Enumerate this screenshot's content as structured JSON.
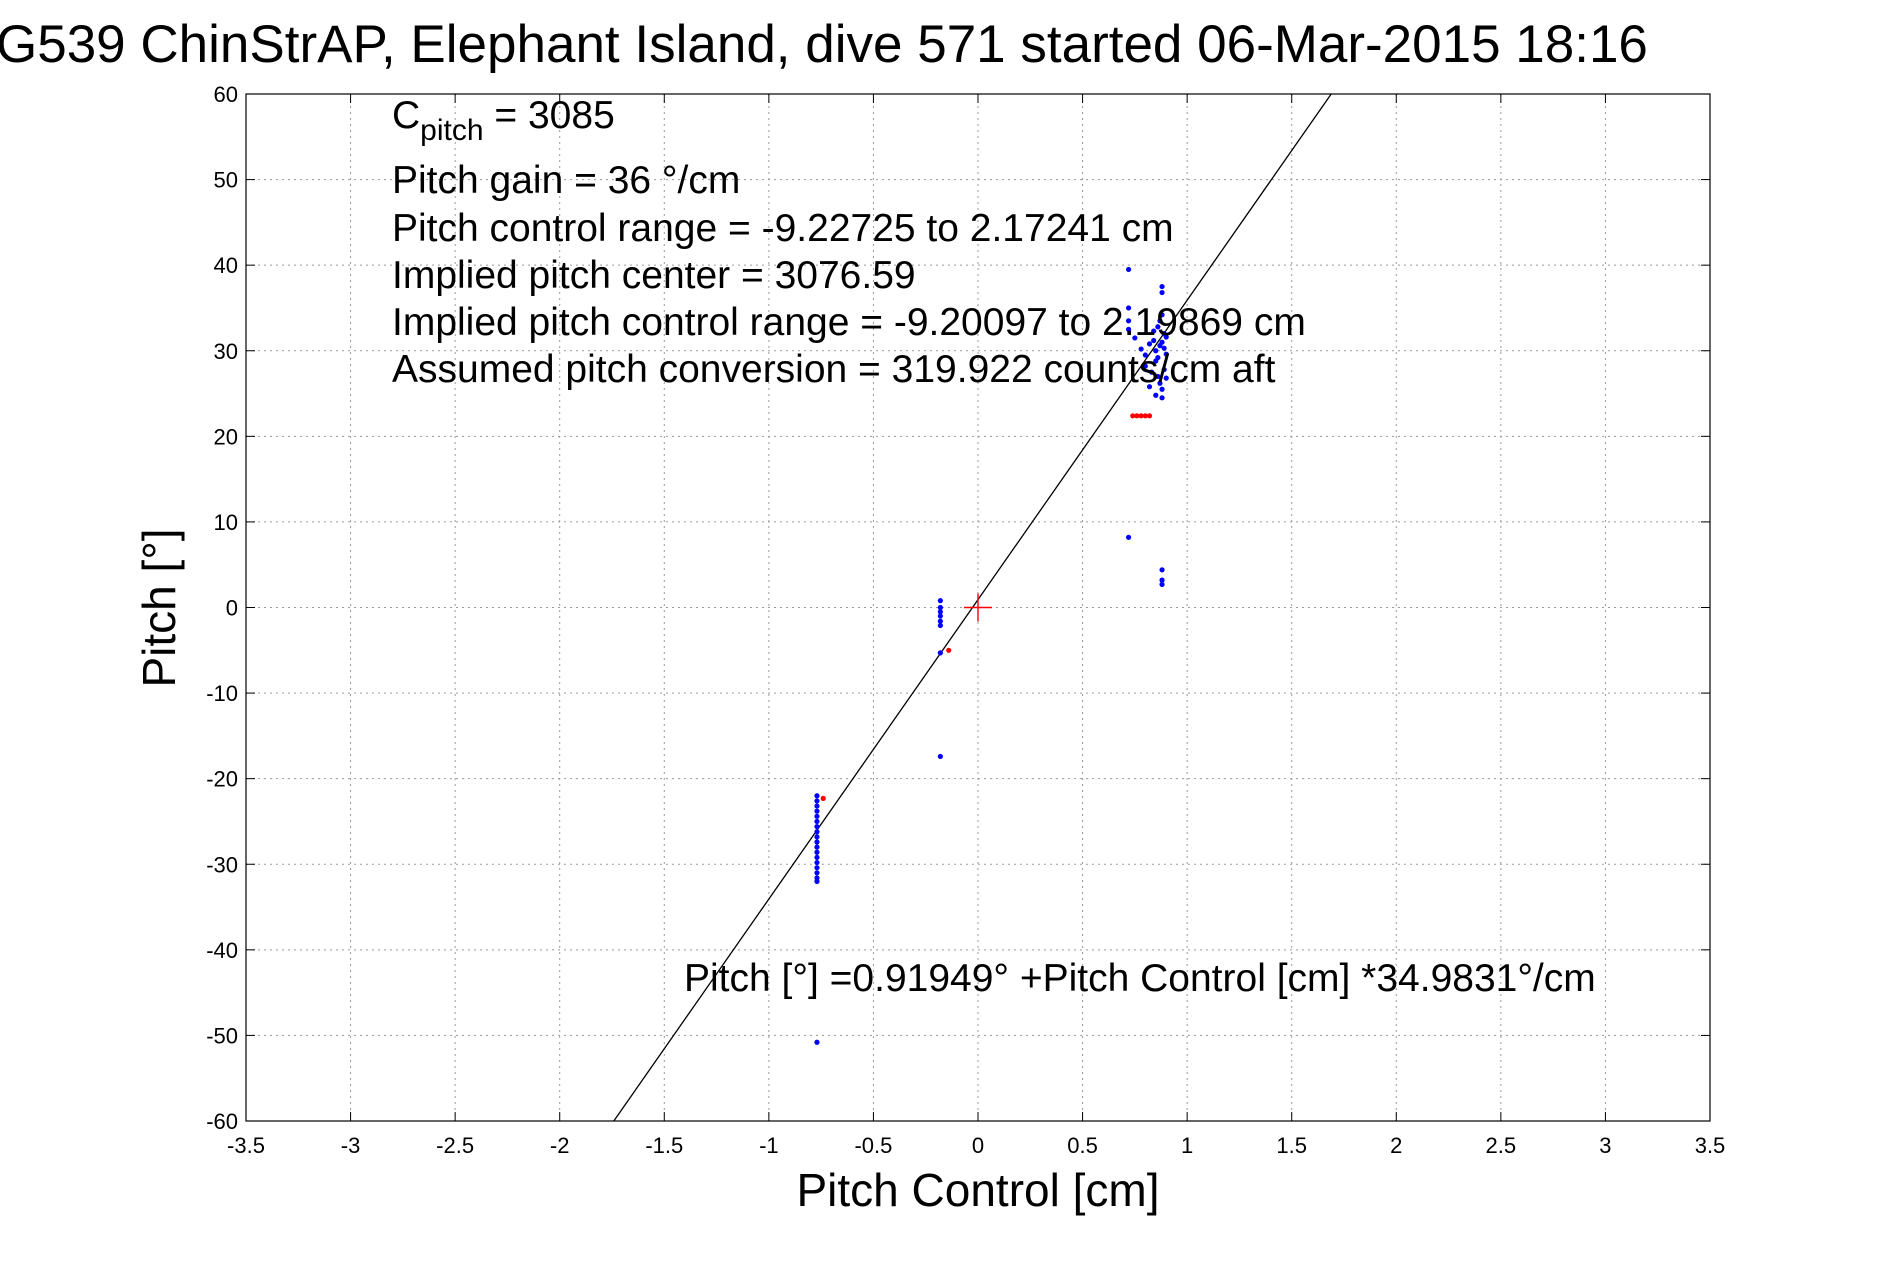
{
  "chart_data": {
    "type": "scatter",
    "title": "G539 ChinStrAP, Elephant Island, dive 571 started 06-Mar-2015 18:16",
    "xlabel": "Pitch Control [cm]",
    "ylabel": "Pitch [°]",
    "xlim": [
      -3.5,
      3.5
    ],
    "ylim": [
      -60,
      60
    ],
    "xticks": [
      -3.5,
      -3,
      -2.5,
      -2,
      -1.5,
      -1,
      -0.5,
      0,
      0.5,
      1,
      1.5,
      2,
      2.5,
      3,
      3.5
    ],
    "yticks": [
      -60,
      -50,
      -40,
      -30,
      -20,
      -10,
      0,
      10,
      20,
      30,
      40,
      50,
      60
    ],
    "xtick_labels": [
      "-3.5",
      "-3",
      "-2.5",
      "-2",
      "-1.5",
      "-1",
      "-0.5",
      "0",
      "0.5",
      "1",
      "1.5",
      "2",
      "2.5",
      "3",
      "3.5"
    ],
    "ytick_labels": [
      "-60",
      "-50",
      "-40",
      "-30",
      "-20",
      "-10",
      "0",
      "10",
      "20",
      "30",
      "40",
      "50",
      "60"
    ],
    "grid": true,
    "series": [
      {
        "color": "#0000ff",
        "points": [
          [
            -0.77,
            -22
          ],
          [
            -0.77,
            -22.6
          ],
          [
            -0.77,
            -23.2
          ],
          [
            -0.77,
            -23.8
          ],
          [
            -0.77,
            -24.4
          ],
          [
            -0.77,
            -25
          ],
          [
            -0.77,
            -25.6
          ],
          [
            -0.77,
            -26.2
          ],
          [
            -0.77,
            -26.8
          ],
          [
            -0.77,
            -27.4
          ],
          [
            -0.77,
            -28
          ],
          [
            -0.77,
            -28.6
          ],
          [
            -0.77,
            -29.2
          ],
          [
            -0.77,
            -29.8
          ],
          [
            -0.77,
            -30.4
          ],
          [
            -0.77,
            -31
          ],
          [
            -0.77,
            -31.6
          ],
          [
            -0.77,
            -32
          ],
          [
            -0.77,
            -50.8
          ],
          [
            -0.18,
            0.8
          ],
          [
            -0.18,
            0
          ],
          [
            -0.18,
            -0.5
          ],
          [
            -0.18,
            -1
          ],
          [
            -0.18,
            -1.6
          ],
          [
            -0.18,
            -2.1
          ],
          [
            -0.18,
            -5.3
          ],
          [
            -0.18,
            -17.4
          ],
          [
            0.72,
            39.5
          ],
          [
            0.72,
            8.2
          ],
          [
            0.72,
            35
          ],
          [
            0.72,
            33.5
          ],
          [
            0.72,
            32.5
          ],
          [
            0.88,
            37.5
          ],
          [
            0.88,
            36.8
          ],
          [
            0.88,
            4.4
          ],
          [
            0.88,
            3.2
          ],
          [
            0.88,
            2.7
          ],
          [
            0.75,
            31.5
          ],
          [
            0.78,
            30.2
          ],
          [
            0.8,
            29.5
          ],
          [
            0.82,
            30.8
          ],
          [
            0.84,
            31.2
          ],
          [
            0.85,
            30
          ],
          [
            0.86,
            29.2
          ],
          [
            0.87,
            30.6
          ],
          [
            0.88,
            31
          ],
          [
            0.89,
            30.3
          ],
          [
            0.8,
            28.2
          ],
          [
            0.83,
            27.5
          ],
          [
            0.85,
            28.8
          ],
          [
            0.86,
            27
          ],
          [
            0.87,
            26.2
          ],
          [
            0.88,
            25.5
          ],
          [
            0.89,
            27.8
          ],
          [
            0.9,
            26.8
          ],
          [
            0.84,
            32.3
          ],
          [
            0.86,
            32.8
          ],
          [
            0.87,
            33.5
          ],
          [
            0.88,
            34.2
          ],
          [
            0.89,
            32
          ],
          [
            0.9,
            31.6
          ],
          [
            0.9,
            29.6
          ],
          [
            0.82,
            25.8
          ],
          [
            0.85,
            24.8
          ],
          [
            0.88,
            24.5
          ]
        ]
      },
      {
        "color": "#ff0000",
        "points": [
          [
            0.74,
            22.4
          ],
          [
            0.76,
            22.4
          ],
          [
            0.78,
            22.4
          ],
          [
            0.8,
            22.4
          ],
          [
            0.82,
            22.4
          ],
          [
            -0.14,
            -5
          ],
          [
            -0.74,
            -22.3
          ]
        ]
      }
    ],
    "fit_line": {
      "intercept": 0.91949,
      "slope": 34.9831,
      "color": "#000000"
    },
    "center_marker": {
      "x": 0,
      "y": 0,
      "color": "#ff0000"
    },
    "annotations": {
      "cpitch_base": "C",
      "cpitch_sub": "pitch",
      "cpitch_value": " = 3085",
      "lines": [
        "Pitch gain = 36 °/cm",
        "Pitch control range = -9.22725 to 2.17241 cm",
        "Implied pitch center = 3076.59",
        "Implied pitch control range = -9.20097 to 2.19869 cm",
        "Assumed pitch conversion = 319.922 counts/cm aft"
      ],
      "fit_equation": "Pitch [°] =0.91949° +Pitch Control [cm] *34.9831°/cm"
    }
  }
}
